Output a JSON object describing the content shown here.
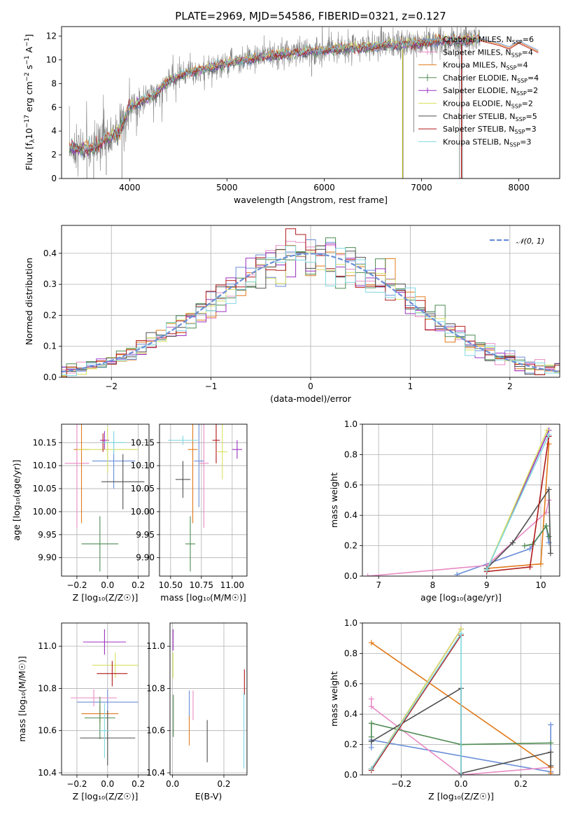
{
  "colors": {
    "chabrier_miles": "#6a8ed8",
    "salpeter_miles": "#e88ac4",
    "kroupa_miles": "#e07b1c",
    "chabrier_elodie": "#4d8a50",
    "salpeter_elodie": "#9a30c0",
    "kroupa_elodie": "#d8e060",
    "chabrier_stelib": "#505050",
    "salpeter_stelib": "#b01818",
    "kroupa_stelib": "#80d8e0",
    "normal_curve": "#6a8ed8",
    "data_spectrum": "#808080"
  },
  "chart_data": [
    {
      "id": "spectrum",
      "type": "line",
      "title": "PLATE=2969, MJD=54586, FIBERID=0321, z=0.127",
      "xlabel": "wavelength [Angstrom, rest frame]",
      "ylabel_parts": [
        "Flux [f",
        "λ",
        "10",
        "−17",
        " erg cm",
        "−2",
        " s",
        "−1",
        " A",
        "−1",
        "]"
      ],
      "xlim": [
        3300,
        8420
      ],
      "ylim": [
        0,
        12.8
      ],
      "xticks": [
        "4000",
        "5000",
        "6000",
        "7000",
        "8000"
      ],
      "yticks": [
        "0",
        "2",
        "4",
        "6",
        "8",
        "10",
        "12"
      ],
      "legend_placement": "upper-right",
      "legend": [
        {
          "label": "Chabrier MILES, N",
          "sub": "SSP",
          "suffix": "=6",
          "color": "#6a8ed8"
        },
        {
          "label": "Salpeter MILES, N",
          "sub": "SSP",
          "suffix": "=4",
          "color": "#e88ac4"
        },
        {
          "label": "Kroupa MILES, N",
          "sub": "SSP",
          "suffix": "=4",
          "color": "#e07b1c"
        },
        {
          "label": "Chabrier ELODIE, N",
          "sub": "SSP",
          "suffix": "=4",
          "color": "#4d8a50"
        },
        {
          "label": "Salpeter ELODIE, N",
          "sub": "SSP",
          "suffix": "=2",
          "color": "#9a30c0"
        },
        {
          "label": "Kroupa ELODIE, N",
          "sub": "SSP",
          "suffix": "=2",
          "color": "#d8e060"
        },
        {
          "label": "Chabrier STELIB, N",
          "sub": "SSP",
          "suffix": "=5",
          "color": "#505050"
        },
        {
          "label": "Salpeter STELIB, N",
          "sub": "SSP",
          "suffix": "=3",
          "color": "#b01818"
        },
        {
          "label": "Kroupa STELIB, N",
          "sub": "SSP",
          "suffix": "=3",
          "color": "#80d8e0"
        }
      ],
      "continuum": {
        "x": [
          3380,
          3600,
          3700,
          3800,
          3900,
          4000,
          4100,
          4200,
          4300,
          4400,
          4500,
          4600,
          4700,
          4800,
          4900,
          5000,
          5200,
          5400,
          5600,
          5800,
          6000,
          6200,
          6400,
          6600,
          6800,
          7000,
          7200,
          7400,
          7600
        ],
        "y": [
          2.6,
          2.5,
          3.0,
          3.5,
          4.0,
          6.0,
          6.4,
          6.8,
          7.4,
          8.2,
          8.6,
          8.9,
          9.1,
          9.3,
          9.5,
          9.7,
          10.0,
          10.3,
          10.5,
          10.7,
          10.8,
          11.0,
          11.0,
          11.2,
          11.3,
          11.4,
          11.6,
          11.6,
          11.8
        ]
      },
      "model_extension": {
        "x": [
          7600,
          7800,
          7900,
          8000,
          8100,
          8200
        ],
        "y": [
          11.6,
          11.2,
          10.9,
          11.4,
          11.0,
          10.6
        ]
      }
    },
    {
      "id": "residuals",
      "type": "histogram",
      "xlabel": "(data-model)/error",
      "ylabel": "Normed distribution",
      "xlim": [
        -2.5,
        2.5
      ],
      "ylim": [
        0,
        0.49
      ],
      "xticks": [
        "−2",
        "−1",
        "0",
        "1",
        "2"
      ],
      "yticks": [
        "0.0",
        "0.1",
        "0.2",
        "0.3",
        "0.4"
      ],
      "grid": true,
      "legend_placement": "upper-right",
      "legend": "𝒩(0, 1)",
      "bin_width": 0.1,
      "normal": {
        "mean": 0,
        "sigma": 1
      }
    },
    {
      "id": "age-vs-Z",
      "type": "errorbar",
      "xlabel": "Z [log₁₀(Z/Z☉)]",
      "ylabel": "age  [log₁₀(age/yr)]",
      "xlim": [
        -0.3,
        0.27
      ],
      "ylim": [
        9.86,
        10.19
      ],
      "xticks": [
        "−0.2",
        "0.0",
        "0.2"
      ],
      "yticks": [
        "9.90",
        "9.95",
        "10.00",
        "10.05",
        "10.10",
        "10.15"
      ],
      "grid": true,
      "points": [
        {
          "c": "chabrier_miles",
          "x": 0.04,
          "xerr": 0.14,
          "y": 10.11,
          "yerr": 0.06
        },
        {
          "c": "salpeter_miles",
          "x": -0.2,
          "xerr": 0.08,
          "y": 10.105,
          "yerr": 0.14
        },
        {
          "c": "kroupa_miles",
          "x": -0.17,
          "xerr": 0.05,
          "y": 10.135,
          "yerr": 0.16
        },
        {
          "c": "chabrier_elodie",
          "x": -0.05,
          "xerr": 0.12,
          "y": 9.93,
          "yerr": 0.06
        },
        {
          "c": "salpeter_elodie",
          "x": -0.02,
          "xerr": 0.03,
          "y": 10.155,
          "yerr": 0.02
        },
        {
          "c": "kroupa_elodie",
          "x": 0.0,
          "xerr": 0.2,
          "y": 10.135,
          "yerr": 0.05
        },
        {
          "c": "chabrier_stelib",
          "x": 0.1,
          "xerr": 0.14,
          "y": 10.065,
          "yerr": 0.06
        },
        {
          "c": "salpeter_stelib",
          "x": -0.03,
          "xerr": 0.01,
          "y": 10.15,
          "yerr": 0.02
        },
        {
          "c": "kroupa_stelib",
          "x": 0.04,
          "xerr": 0.08,
          "y": 10.15,
          "yerr": 0.025
        }
      ]
    },
    {
      "id": "age-vs-mass",
      "type": "errorbar",
      "xlabel": "mass [log₁₀(M/M☉)]",
      "xlim": [
        10.41,
        11.12
      ],
      "ylim": [
        9.86,
        10.19
      ],
      "xticks": [
        "10.50",
        "10.75",
        "11.00"
      ],
      "yticks": [
        "9.90",
        "9.95",
        "10.00",
        "10.05",
        "10.10",
        "10.15"
      ],
      "grid": true,
      "points": [
        {
          "c": "chabrier_miles",
          "x": 10.73,
          "xerr": 0.04,
          "y": 10.11,
          "yerr": 0.1
        },
        {
          "c": "salpeter_miles",
          "x": 10.77,
          "xerr": 0.04,
          "y": 10.105,
          "yerr": 0.14
        },
        {
          "c": "kroupa_miles",
          "x": 10.68,
          "xerr": 0.04,
          "y": 10.135,
          "yerr": 0.16
        },
        {
          "c": "chabrier_elodie",
          "x": 10.66,
          "xerr": 0.04,
          "y": 9.93,
          "yerr": 0.06
        },
        {
          "c": "salpeter_elodie",
          "x": 11.04,
          "xerr": 0.04,
          "y": 10.135,
          "yerr": 0.02
        },
        {
          "c": "kroupa_elodie",
          "x": 10.92,
          "xerr": 0.04,
          "y": 10.13,
          "yerr": 0.06
        },
        {
          "c": "chabrier_stelib",
          "x": 10.6,
          "xerr": 0.06,
          "y": 10.07,
          "yerr": 0.04
        },
        {
          "c": "salpeter_stelib",
          "x": 10.87,
          "xerr": 0.03,
          "y": 10.155,
          "yerr": 0.05
        },
        {
          "c": "kroupa_stelib",
          "x": 10.6,
          "xerr": 0.12,
          "y": 10.155,
          "yerr": 0.01
        }
      ]
    },
    {
      "id": "weight-vs-age",
      "type": "line",
      "xlabel": "age  [log₁₀(age/yr)]",
      "ylabel": "mass weight",
      "xlim": [
        6.7,
        10.35
      ],
      "ylim": [
        0,
        1
      ],
      "xticks": [
        "7",
        "8",
        "9",
        "10"
      ],
      "yticks": [
        "0.0",
        "0.2",
        "0.4",
        "0.6",
        "0.8",
        "1.0"
      ],
      "grid": true,
      "series": [
        {
          "c": "chabrier_miles",
          "x": [
            8.45,
            9.8,
            10.1,
            10.15
          ],
          "y": [
            0.01,
            0.18,
            0.33,
            0.22
          ]
        },
        {
          "c": "salpeter_miles",
          "x": [
            6.8,
            9.0,
            10.1,
            10.15
          ],
          "y": [
            0.0,
            0.07,
            0.42,
            0.5
          ]
        },
        {
          "c": "kroupa_miles",
          "x": [
            9.0,
            10.0,
            10.15
          ],
          "y": [
            0.05,
            0.08,
            0.87
          ]
        },
        {
          "c": "chabrier_elodie",
          "x": [
            9.7,
            9.85,
            10.1,
            10.15
          ],
          "y": [
            0.2,
            0.21,
            0.33,
            0.26
          ]
        },
        {
          "c": "salpeter_elodie",
          "x": [
            9.0,
            10.15
          ],
          "y": [
            0.04,
            0.96
          ]
        },
        {
          "c": "kroupa_elodie",
          "x": [
            9.0,
            10.12
          ],
          "y": [
            0.04,
            0.96
          ]
        },
        {
          "c": "chabrier_stelib",
          "x": [
            9.0,
            9.48,
            10.15,
            10.18
          ],
          "y": [
            0.05,
            0.22,
            0.57,
            0.15
          ]
        },
        {
          "c": "salpeter_stelib",
          "x": [
            9.0,
            9.8,
            10.15
          ],
          "y": [
            0.03,
            0.06,
            0.92
          ]
        },
        {
          "c": "kroupa_stelib",
          "x": [
            9.0,
            10.15
          ],
          "y": [
            0.04,
            0.93
          ]
        }
      ]
    },
    {
      "id": "mass-vs-Z",
      "type": "errorbar",
      "xlabel": "Z [log₁₀(Z/Z☉)]",
      "ylabel": "mass [log₁₀(M/M☉)]",
      "xlim": [
        -0.3,
        0.27
      ],
      "ylim": [
        10.39,
        11.11
      ],
      "xticks": [
        "−0.2",
        "0.0",
        "0.2"
      ],
      "yticks": [
        "10.4",
        "10.6",
        "10.8",
        "11.0"
      ],
      "grid": true,
      "points": [
        {
          "c": "chabrier_miles",
          "x": 0.0,
          "xerr": 0.2,
          "y": 10.735,
          "yerr": 0.06
        },
        {
          "c": "salpeter_miles",
          "x": -0.09,
          "xerr": 0.15,
          "y": 10.755,
          "yerr": 0.04
        },
        {
          "c": "kroupa_miles",
          "x": -0.05,
          "xerr": 0.12,
          "y": 10.68,
          "yerr": 0.04
        },
        {
          "c": "chabrier_elodie",
          "x": -0.05,
          "xerr": 0.1,
          "y": 10.66,
          "yerr": 0.1
        },
        {
          "c": "salpeter_elodie",
          "x": -0.02,
          "xerr": 0.14,
          "y": 11.02,
          "yerr": 0.06
        },
        {
          "c": "kroupa_elodie",
          "x": 0.05,
          "xerr": 0.15,
          "y": 10.91,
          "yerr": 0.06
        },
        {
          "c": "chabrier_stelib",
          "x": 0.0,
          "xerr": 0.18,
          "y": 10.565,
          "yerr": 0.13
        },
        {
          "c": "salpeter_stelib",
          "x": 0.03,
          "xerr": 0.1,
          "y": 10.87,
          "yerr": 0.06
        },
        {
          "c": "kroupa_stelib",
          "x": -0.02,
          "xerr": 0.03,
          "y": 10.6,
          "yerr": 0.13
        }
      ]
    },
    {
      "id": "mass-vs-ebv",
      "type": "errorbar",
      "xlabel": "E(B-V)",
      "xlim": [
        -0.01,
        0.29
      ],
      "ylim": [
        10.39,
        11.11
      ],
      "xticks": [
        "0.0",
        "0.2"
      ],
      "yticks": [
        "10.4",
        "10.6",
        "10.8",
        "11.0"
      ],
      "grid": true,
      "points": [
        {
          "c": "chabrier_miles",
          "x": 0.065,
          "xerr": 0,
          "y": 10.72,
          "yerr": 0.07
        },
        {
          "c": "salpeter_miles",
          "x": 0.08,
          "xerr": 0,
          "y": 10.72,
          "yerr": 0.07
        },
        {
          "c": "kroupa_miles",
          "x": 0.065,
          "xerr": 0,
          "y": 10.6,
          "yerr": 0.07
        },
        {
          "c": "chabrier_elodie",
          "x": 0.003,
          "xerr": 0,
          "y": 10.67,
          "yerr": 0.1
        },
        {
          "c": "salpeter_elodie",
          "x": 0.002,
          "xerr": 0,
          "y": 11.03,
          "yerr": 0.05
        },
        {
          "c": "kroupa_elodie",
          "x": 0.002,
          "xerr": 0,
          "y": 10.91,
          "yerr": 0.06
        },
        {
          "c": "chabrier_stelib",
          "x": 0.135,
          "xerr": 0,
          "y": 10.55,
          "yerr": 0.1
        },
        {
          "c": "salpeter_stelib",
          "x": 0.28,
          "xerr": 0,
          "y": 10.83,
          "yerr": 0.06
        },
        {
          "c": "kroupa_stelib",
          "x": 0.278,
          "xerr": 0,
          "y": 10.6,
          "yerr": 0.18
        }
      ]
    },
    {
      "id": "weight-vs-Z",
      "type": "line",
      "xlabel": "Z [log₁₀(Z/Z☉)]",
      "ylabel": "mass weight",
      "xlim": [
        -0.33,
        0.33
      ],
      "ylim": [
        0,
        1
      ],
      "xticks": [
        "−0.2",
        "0.0",
        "0.2"
      ],
      "yticks": [
        "0.0",
        "0.2",
        "0.4",
        "0.6",
        "0.8",
        "1.0"
      ],
      "grid": true,
      "series": [
        {
          "c": "chabrier_miles",
          "x": [
            -0.3,
            -0.3,
            0.3,
            0.3
          ],
          "y": [
            0.18,
            0.23,
            0.02,
            0.33
          ]
        },
        {
          "c": "salpeter_miles",
          "x": [
            -0.3,
            -0.3,
            0.0,
            0.3
          ],
          "y": [
            0.5,
            0.45,
            0.0,
            0.05
          ]
        },
        {
          "c": "kroupa_miles",
          "x": [
            -0.3,
            0.3,
            0.3
          ],
          "y": [
            0.87,
            0.05,
            0.01
          ]
        },
        {
          "c": "chabrier_elodie",
          "x": [
            -0.3,
            -0.3,
            0.0,
            0.3
          ],
          "y": [
            0.25,
            0.34,
            0.2,
            0.21
          ]
        },
        {
          "c": "salpeter_elodie",
          "x": [
            -0.3,
            0.0
          ],
          "y": [
            0.04,
            0.96
          ]
        },
        {
          "c": "kroupa_elodie",
          "x": [
            -0.3,
            0.0
          ],
          "y": [
            0.04,
            0.96
          ]
        },
        {
          "c": "chabrier_stelib",
          "x": [
            -0.3,
            0.0,
            0.0,
            0.3,
            0.3
          ],
          "y": [
            0.22,
            0.57,
            0.01,
            0.15,
            0.06
          ]
        },
        {
          "c": "salpeter_stelib",
          "x": [
            -0.3,
            0.0
          ],
          "y": [
            0.03,
            0.92
          ]
        },
        {
          "c": "kroupa_stelib",
          "x": [
            -0.3,
            0.0,
            0.0
          ],
          "y": [
            0.04,
            0.93,
            0.0
          ]
        }
      ]
    }
  ]
}
